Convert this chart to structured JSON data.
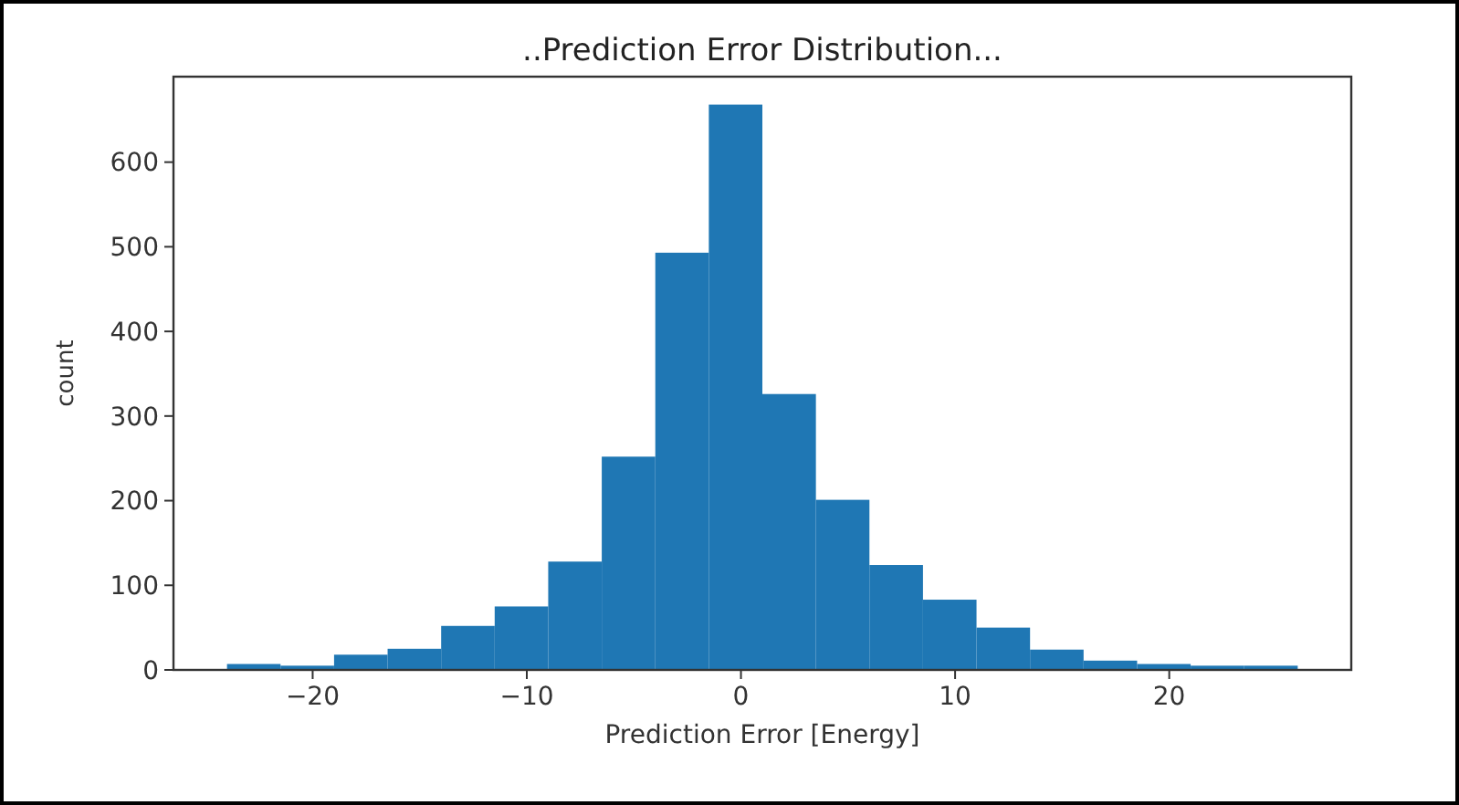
{
  "chart_data": {
    "type": "histogram",
    "title": "..Prediction Error Distribution...",
    "xlabel": "Prediction Error [Energy]",
    "ylabel": "count",
    "bins": [
      -24,
      -21.5,
      -19,
      -16.5,
      -14,
      -11.5,
      -9,
      -6.5,
      -4,
      -1.5,
      1,
      3.5,
      6,
      8.5,
      11,
      13.5,
      16,
      18.5,
      21,
      23.5,
      26
    ],
    "values": [
      7,
      5,
      18,
      25,
      52,
      75,
      128,
      252,
      493,
      668,
      326,
      201,
      124,
      83,
      50,
      24,
      11,
      7,
      5,
      5
    ],
    "color": "#1f77b4",
    "xlim": [
      -26.5,
      28.5
    ],
    "ylim": [
      0,
      701
    ],
    "xticks": [
      {
        "value": -20,
        "label": "−20"
      },
      {
        "value": -10,
        "label": "−10"
      },
      0,
      10,
      20
    ],
    "yticks": [
      0,
      100,
      200,
      300,
      400,
      500,
      600
    ],
    "grid": false
  }
}
